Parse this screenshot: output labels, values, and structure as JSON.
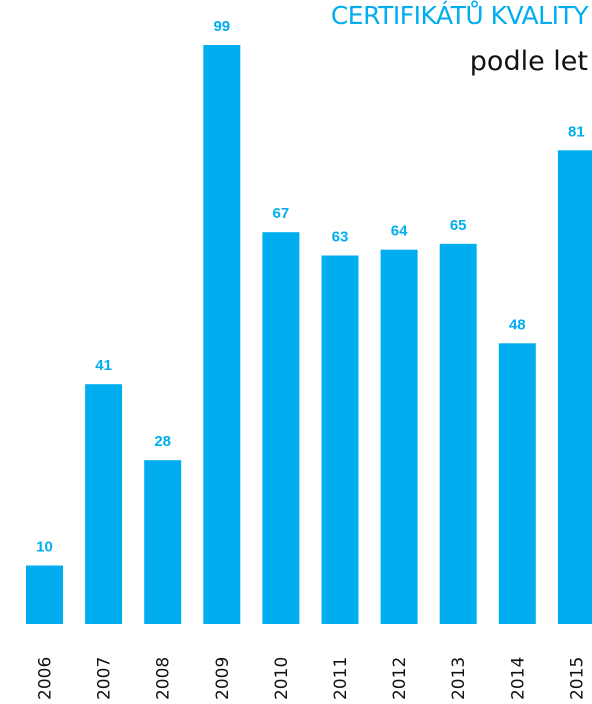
{
  "title": {
    "line1": "CERTIFIKÁTŮ KVALITY",
    "line2": "podle let"
  },
  "colors": {
    "bar": "#00aeef",
    "data_label": "#00aeef",
    "tick_label": "#111111"
  },
  "chart_data": {
    "type": "bar",
    "title": "CERTIFIKÁTŮ KVALITY podle let",
    "categories": [
      "2006",
      "2007",
      "2008",
      "2009",
      "2010",
      "2011",
      "2012",
      "2013",
      "2014",
      "2015"
    ],
    "values": [
      10,
      41,
      28,
      99,
      67,
      63,
      64,
      65,
      48,
      81
    ],
    "xlabel": "",
    "ylabel": "",
    "ylim": [
      0,
      100
    ],
    "grid": false,
    "legend": "none",
    "data_labels": true,
    "tick_label_orientation": "vertical"
  }
}
